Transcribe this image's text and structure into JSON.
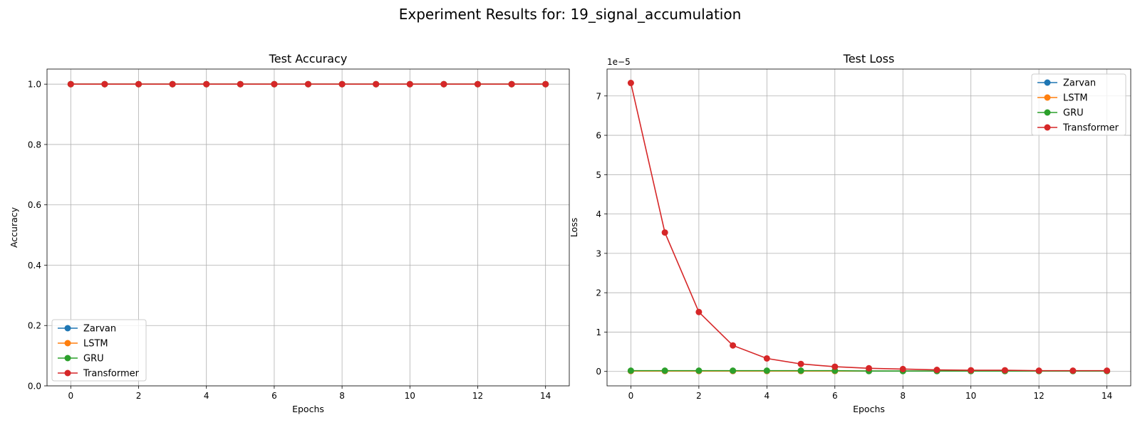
{
  "figure": {
    "suptitle": "Experiment Results for: 19_signal_accumulation"
  },
  "series_styles": [
    {
      "name": "Zarvan",
      "color": "#1f77b4"
    },
    {
      "name": "LSTM",
      "color": "#ff7f0e"
    },
    {
      "name": "GRU",
      "color": "#2ca02c"
    },
    {
      "name": "Transformer",
      "color": "#d62728"
    }
  ],
  "chart_data": [
    {
      "type": "line",
      "title": "Test Accuracy",
      "xlabel": "Epochs",
      "ylabel": "Accuracy",
      "x": [
        0,
        1,
        2,
        3,
        4,
        5,
        6,
        7,
        8,
        9,
        10,
        11,
        12,
        13,
        14
      ],
      "xlim": [
        -0.7,
        14.7
      ],
      "ylim": [
        0,
        1.05
      ],
      "xticks": [
        0,
        2,
        4,
        6,
        8,
        10,
        12,
        14
      ],
      "yticks": [
        0.0,
        0.2,
        0.4,
        0.6,
        0.8,
        1.0
      ],
      "ytick_labels": [
        "0.0",
        "0.2",
        "0.4",
        "0.6",
        "0.8",
        "1.0"
      ],
      "grid": true,
      "legend": "lower-left",
      "series": [
        {
          "name": "Zarvan",
          "values": [
            1,
            1,
            1,
            1,
            1,
            1,
            1,
            1,
            1,
            1,
            1,
            1,
            1,
            1,
            1
          ]
        },
        {
          "name": "LSTM",
          "values": [
            1,
            1,
            1,
            1,
            1,
            1,
            1,
            1,
            1,
            1,
            1,
            1,
            1,
            1,
            1
          ]
        },
        {
          "name": "GRU",
          "values": [
            1,
            1,
            1,
            1,
            1,
            1,
            1,
            1,
            1,
            1,
            1,
            1,
            1,
            1,
            1
          ]
        },
        {
          "name": "Transformer",
          "values": [
            1,
            1,
            1,
            1,
            1,
            1,
            1,
            1,
            1,
            1,
            1,
            1,
            1,
            1,
            1
          ]
        }
      ]
    },
    {
      "type": "line",
      "title": "Test Loss",
      "xlabel": "Epochs",
      "ylabel": "Loss",
      "offset_label": "1e−5",
      "x": [
        0,
        1,
        2,
        3,
        4,
        5,
        6,
        7,
        8,
        9,
        10,
        11,
        12,
        13,
        14
      ],
      "xlim": [
        -0.7,
        14.7
      ],
      "ylim": [
        -3.667e-06,
        7.6833e-05
      ],
      "xticks": [
        0,
        2,
        4,
        6,
        8,
        10,
        12,
        14
      ],
      "yticks": [
        0,
        1e-05,
        2e-05,
        3e-05,
        4e-05,
        5e-05,
        6e-05,
        7e-05
      ],
      "ytick_labels": [
        "0",
        "1",
        "2",
        "3",
        "4",
        "5",
        "6",
        "7"
      ],
      "grid": true,
      "legend": "top-right",
      "series": [
        {
          "name": "Zarvan",
          "values": [
            1e-07,
            1e-07,
            1e-07,
            1e-07,
            1e-07,
            1e-07,
            1e-07,
            1e-07,
            1e-07,
            1e-07,
            1e-07,
            1e-07,
            1e-07,
            1e-07,
            1e-07
          ]
        },
        {
          "name": "LSTM",
          "values": [
            1e-07,
            1e-07,
            1e-07,
            1e-07,
            1e-07,
            1e-07,
            1e-07,
            1e-07,
            1e-07,
            1e-07,
            1e-07,
            1e-07,
            1e-07,
            1e-07,
            1e-07
          ]
        },
        {
          "name": "GRU",
          "values": [
            2e-07,
            2e-07,
            2e-07,
            2e-07,
            2e-07,
            2e-07,
            2e-07,
            1e-07,
            1e-07,
            1e-07,
            1e-07,
            1e-07,
            1e-07,
            1e-07,
            1e-07
          ]
        },
        {
          "name": "Transformer",
          "values": [
            7.33e-05,
            3.53e-05,
            1.51e-05,
            6.6e-06,
            3.3e-06,
            1.9e-06,
            1.2e-06,
            8e-07,
            6e-07,
            4e-07,
            3e-07,
            3e-07,
            2e-07,
            2e-07,
            2e-07
          ]
        }
      ]
    }
  ]
}
